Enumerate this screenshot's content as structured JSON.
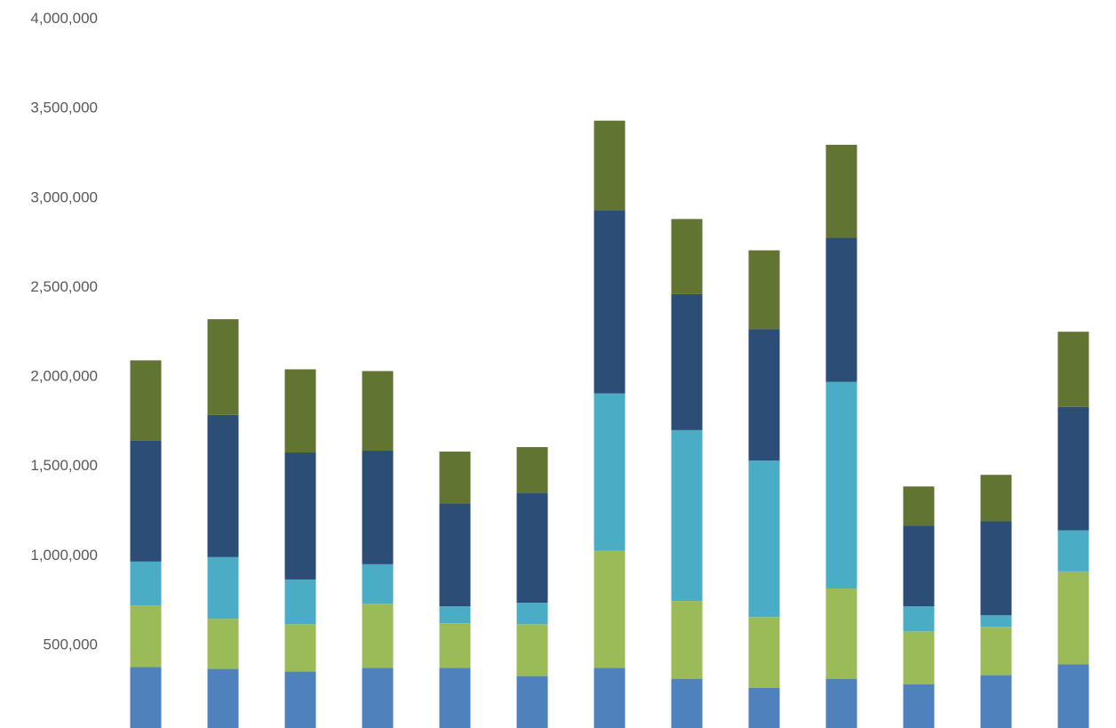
{
  "chart_data": {
    "type": "bar",
    "stacked": true,
    "title": "",
    "xlabel": "",
    "ylabel": "",
    "ylim": [
      0,
      4000000
    ],
    "yticks": [
      {
        "value": 0,
        "label": "-"
      },
      {
        "value": 500000,
        "label": "500,000"
      },
      {
        "value": 1000000,
        "label": "1,000,000"
      },
      {
        "value": 1500000,
        "label": "1,500,000"
      },
      {
        "value": 2000000,
        "label": "2,000,000"
      },
      {
        "value": 2500000,
        "label": "2,500,000"
      },
      {
        "value": 3000000,
        "label": "3,000,000"
      },
      {
        "value": 3500000,
        "label": "3,500,000"
      },
      {
        "value": 4000000,
        "label": "4,000,000"
      }
    ],
    "categories": [
      "",
      "",
      "",
      "",
      "",
      "",
      "",
      "",
      "",
      "",
      "",
      "",
      ""
    ],
    "grid": false,
    "legend": "none",
    "series": [
      {
        "color": "#4F81BD",
        "values": [
          370000,
          360000,
          345000,
          365000,
          365000,
          320000,
          365000,
          305000,
          255000,
          305000,
          275000,
          325000,
          385000
        ]
      },
      {
        "color": "#9BBB59",
        "values": [
          345000,
          280000,
          265000,
          360000,
          250000,
          290000,
          655000,
          435000,
          395000,
          505000,
          295000,
          270000,
          520000
        ]
      },
      {
        "color": "#4BACC6",
        "values": [
          245000,
          345000,
          250000,
          220000,
          95000,
          120000,
          880000,
          955000,
          875000,
          1155000,
          140000,
          65000,
          230000
        ]
      },
      {
        "color": "#2C4D75",
        "values": [
          675000,
          795000,
          710000,
          635000,
          575000,
          615000,
          1025000,
          760000,
          735000,
          805000,
          450000,
          525000,
          690000
        ]
      },
      {
        "color": "#617431",
        "values": [
          450000,
          535000,
          465000,
          445000,
          290000,
          255000,
          500000,
          420000,
          440000,
          520000,
          220000,
          260000,
          420000
        ]
      }
    ]
  }
}
